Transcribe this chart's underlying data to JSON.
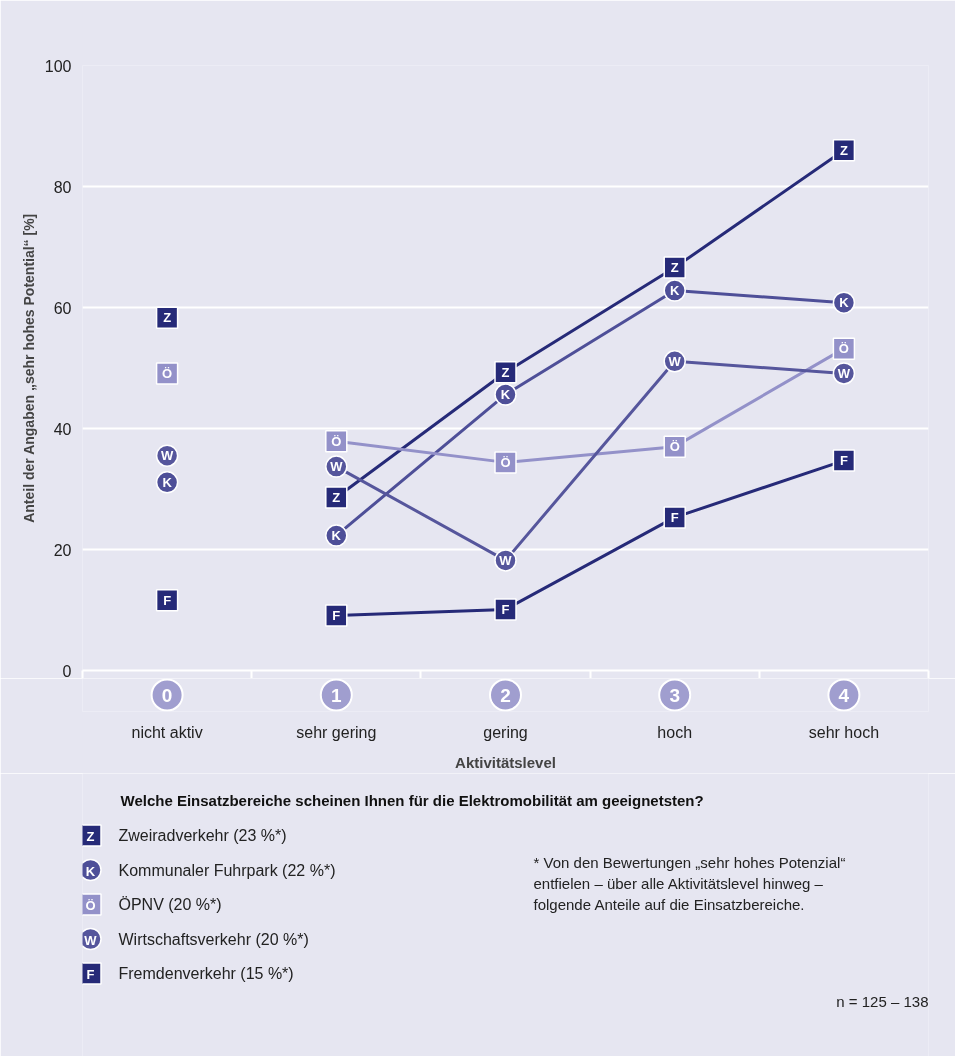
{
  "chart_data": {
    "type": "line",
    "xlabel": "Aktivitätslevel",
    "ylabel": "Anteil der Angaben „sehr hohes Potential“ [%]",
    "legend_title": "Welche Einsatzbereiche scheinen Ihnen für die Elektromobilität am geeignetsten?",
    "categories": [
      "0\nnicht aktiv",
      "1\nsehr gering",
      "2\ngering",
      "3\nhoch",
      "4\nsehr hoch"
    ],
    "ylim": [
      0,
      100
    ],
    "yticks": [
      0,
      20,
      40,
      60,
      80,
      100
    ],
    "grid": "y",
    "legend": "bottom",
    "line_style": "solid",
    "series": [
      {
        "name": "Zweiradverkehr (23 %*)",
        "color": "#262a78",
        "marker": "square",
        "values": [
          null,
          28.6,
          49.3,
          66.6,
          86.0
        ],
        "value_labels": [
          null,
          "Z",
          "Z",
          "Z",
          "Z"
        ]
      },
      {
        "name": "Kommunaler Fuhrpark (22 %*)",
        "color": "#4e4f98",
        "marker": "circle",
        "values": [
          null,
          22.3,
          45.6,
          62.8,
          60.8
        ],
        "value_labels": [
          null,
          "K",
          "K",
          "K",
          "K"
        ]
      },
      {
        "name": "ÖPNV (20 %*)",
        "color": "#9391c9",
        "marker": "square",
        "values": [
          null,
          37.9,
          34.4,
          37.0,
          53.2
        ],
        "value_labels": [
          null,
          "Ö",
          "Ö",
          "Ö",
          "Ö"
        ]
      },
      {
        "name": "Wirtschaftsverkehr (20 %*)",
        "color": "#56569c",
        "marker": "circle",
        "values": [
          null,
          33.7,
          18.2,
          51.1,
          49.1
        ],
        "value_labels": [
          null,
          "W",
          "W",
          "W",
          "W"
        ]
      },
      {
        "name": "Fremdenverkehr (15 %*)",
        "color": "#262a78",
        "marker": "square",
        "values": [
          null,
          9.1,
          10.1,
          25.3,
          34.7
        ],
        "value_labels": [
          null,
          "F",
          "F",
          "F",
          "F"
        ]
      },
      {
        "type": "scatter",
        "color": "#262a78",
        "marker": "square",
        "values": [
          58.3,
          null,
          null,
          null,
          null
        ],
        "value_labels": [
          "Z",
          null,
          null,
          null,
          null
        ]
      },
      {
        "type": "scatter",
        "color": "#4e4f98",
        "marker": "circle",
        "values": [
          31.1,
          null,
          null,
          null,
          null
        ],
        "value_labels": [
          "K",
          null,
          null,
          null,
          null
        ]
      },
      {
        "type": "scatter",
        "color": "#9391c9",
        "marker": "square",
        "values": [
          49.1,
          null,
          null,
          null,
          null
        ],
        "value_labels": [
          "Ö",
          null,
          null,
          null,
          null
        ]
      },
      {
        "type": "scatter",
        "color": "#56569c",
        "marker": "circle",
        "values": [
          35.5,
          null,
          null,
          null,
          null
        ],
        "value_labels": [
          "W",
          null,
          null,
          null,
          null
        ]
      },
      {
        "type": "scatter",
        "color": "#262a78",
        "marker": "square",
        "values": [
          11.6,
          null,
          null,
          null,
          null
        ],
        "value_labels": [
          "F",
          null,
          null,
          null,
          null
        ]
      }
    ],
    "annotations": [
      "* Von den Bewertungen „sehr hohes Potenzial“\n  entfielen – über alle Aktivitätslevel hinweg –\n  folgende Anteile auf die Einsatzbereiche.",
      "n = 125 – 138"
    ]
  }
}
